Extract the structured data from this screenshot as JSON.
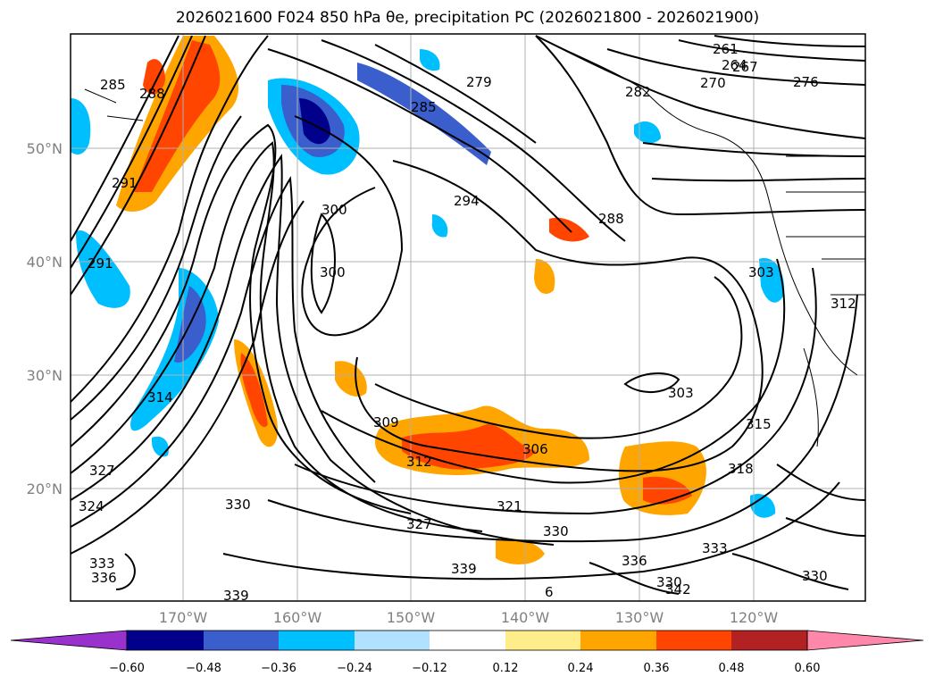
{
  "figure": {
    "title": "2026021600 F024 850 hPa θe, precipitation PC (2026021800 - 2026021900)"
  },
  "map": {
    "lon_ticks": [
      "170°W",
      "160°W",
      "150°W",
      "140°W",
      "130°W",
      "120°W"
    ],
    "lat_ticks": [
      "50°N",
      "40°N",
      "30°N",
      "20°N"
    ],
    "contour_labels": [
      "285",
      "288",
      "291",
      "291",
      "279",
      "282",
      "285",
      "261",
      "264",
      "267",
      "270",
      "276",
      "294",
      "288",
      "300",
      "300",
      "303",
      "303",
      "312",
      "315",
      "318",
      "309",
      "306",
      "312",
      "321",
      "330",
      "330",
      "333",
      "336",
      "339",
      "339",
      "342",
      "330",
      "324",
      "327",
      "327",
      "330",
      "333",
      "336",
      "314",
      "6"
    ]
  },
  "colorbar": {
    "tick_labels": [
      "−0.60",
      "−0.48",
      "−0.36",
      "−0.24",
      "−0.12",
      "0.12",
      "0.24",
      "0.36",
      "0.48",
      "0.60"
    ],
    "colors": [
      "#9932cc",
      "#00008b",
      "#3a5fcd",
      "#00bfff",
      "#b0e2ff",
      "#ffffff",
      "#ffec8b",
      "#ffa500",
      "#ff4500",
      "#b22222",
      "#ff88aa"
    ]
  }
}
